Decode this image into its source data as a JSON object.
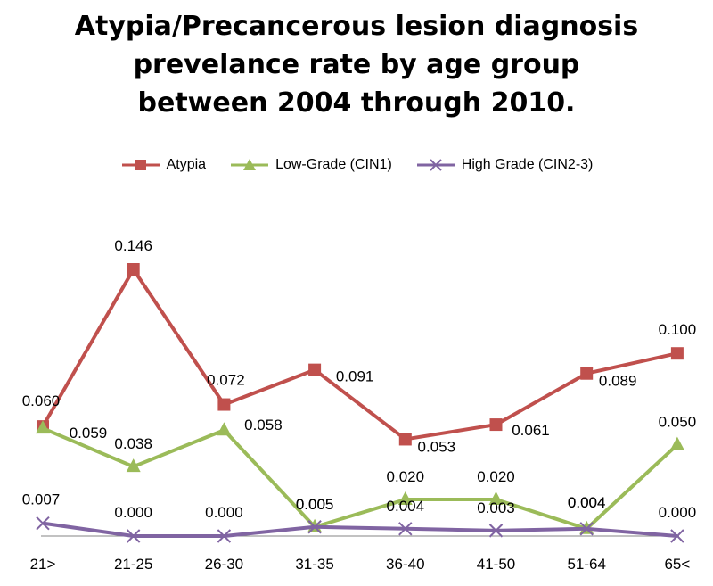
{
  "chart_data": {
    "type": "line",
    "title_lines": [
      "Atypia/Precancerous lesion diagnosis",
      "prevelance rate by age group",
      "between 2004 through 2010."
    ],
    "categories": [
      "21>",
      "21-25",
      "26-30",
      "31-35",
      "36-40",
      "41-50",
      "51-64",
      "65<"
    ],
    "series": [
      {
        "name": "Atypia",
        "color": "#C0504D",
        "marker": "square",
        "values": [
          0.06,
          0.146,
          0.072,
          0.091,
          0.053,
          0.061,
          0.089,
          0.1
        ],
        "labels": [
          "0.060",
          "0.146",
          "0.072",
          "0.091",
          "0.053",
          "0.061",
          "0.089",
          "0.100"
        ]
      },
      {
        "name": "Low-Grade (CIN1)",
        "color": "#9BBB59",
        "marker": "triangle",
        "values": [
          0.059,
          0.038,
          0.058,
          0.005,
          0.02,
          0.02,
          0.004,
          0.05
        ],
        "labels": [
          "0.059",
          "0.038",
          "0.058",
          "0.005",
          "0.020",
          "0.020",
          "0.004",
          "0.050"
        ]
      },
      {
        "name": "High Grade (CIN2-3)",
        "color": "#8064A2",
        "marker": "x",
        "values": [
          0.007,
          0.0,
          0.0,
          0.005,
          0.004,
          0.003,
          0.004,
          0.0
        ],
        "labels": [
          "0.007",
          "0.000",
          "0.000",
          "0.005",
          "0.004",
          "0.003",
          "0.004",
          "0.000"
        ]
      }
    ],
    "ylim": [
      0,
      0.146
    ],
    "grid": false,
    "legend_position": "top"
  }
}
